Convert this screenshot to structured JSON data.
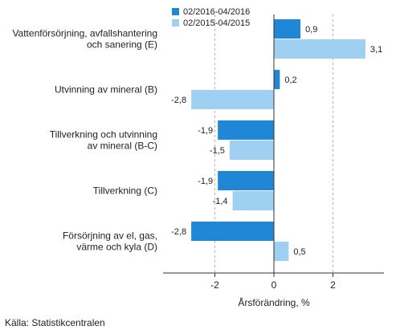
{
  "chart_data": {
    "type": "bar",
    "orientation": "horizontal",
    "categories": [
      [
        "Vattenförsörjning, avfallshantering",
        "och sanering (E)"
      ],
      [
        "Utvinning av mineral (B)"
      ],
      [
        "Tillverkning och utvinning",
        "av mineral (B-C)"
      ],
      [
        "Tillverkning (C)"
      ],
      [
        "Försörjning av el, gas,",
        "värme och kyla (D)"
      ]
    ],
    "series": [
      {
        "name": "02/2016-04/2016",
        "color": "#1f87d6",
        "values": [
          0.9,
          0.2,
          -1.9,
          -1.9,
          -2.8
        ],
        "labels": [
          "0,9",
          "0,2",
          "-1,9",
          "-1,9",
          "-2,8"
        ]
      },
      {
        "name": "02/2015-04/2015",
        "color": "#9fd0f2",
        "values": [
          3.1,
          -2.8,
          -1.5,
          -1.4,
          0.5
        ],
        "labels": [
          "3,1",
          "-2,8",
          "-1,5",
          "-1,4",
          "0,5"
        ]
      }
    ],
    "xlim": [
      -3.5,
      3.8
    ],
    "xticks": [
      -2,
      0,
      2
    ],
    "xtick_labels": [
      "-2",
      "0",
      "2"
    ],
    "xlabel": "Årsförändring, %",
    "grid": "vertical dashed",
    "legend_position": "top"
  },
  "source": "Källa: Statistikcentralen"
}
